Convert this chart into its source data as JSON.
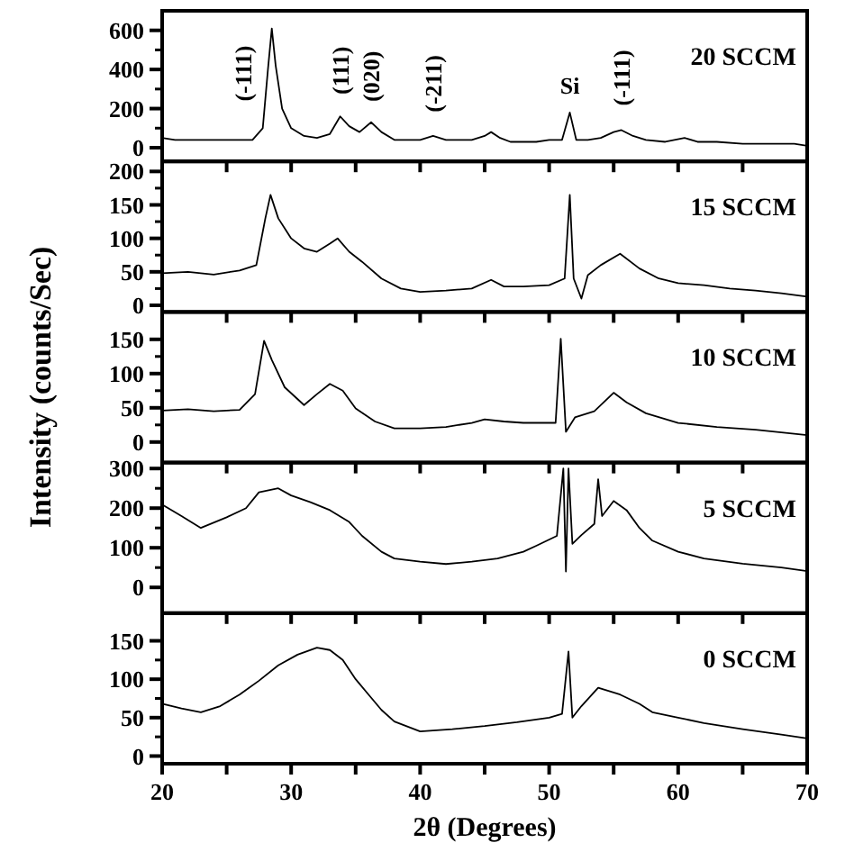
{
  "chart_data": [
    {
      "type": "line",
      "color": "#000000",
      "xlim": [
        20,
        70
      ],
      "ylim": [
        -70,
        700
      ],
      "yticks": [
        0,
        200,
        400,
        600
      ],
      "xticks": [
        20,
        {
          "value": 25,
          "label": null
        },
        30,
        {
          "value": 35,
          "label": null
        },
        40,
        {
          "value": 45,
          "label": null
        },
        50,
        {
          "value": 55,
          "label": null
        },
        60,
        {
          "value": 65,
          "label": null
        },
        70
      ],
      "tick_labels": "y",
      "annotations": [
        "20 SCCM",
        {
          "text": "(-111)",
          "x": 28.5,
          "y": 610
        },
        {
          "text": "(111)",
          "x": 33.8,
          "y": 160
        },
        {
          "text": "(020)",
          "x": 36.2,
          "y": 130
        },
        {
          "text": "(-211)",
          "x": 41,
          "y": 60
        },
        {
          "text": "Si",
          "x": 51.6,
          "y": 180
        },
        {
          "text": "(-111)",
          "x": 55.6,
          "y": 90
        }
      ],
      "x": [
        20,
        21,
        22,
        23,
        24,
        25,
        26,
        27,
        27.8,
        28.2,
        28.5,
        28.8,
        29.3,
        30,
        31,
        32,
        33,
        33.8,
        34.5,
        35.3,
        36.2,
        37,
        38,
        39,
        40,
        41,
        42,
        43,
        44,
        45,
        45.5,
        46.2,
        47,
        48,
        49,
        50,
        51,
        51.6,
        52.1,
        53,
        54,
        55,
        55.6,
        56.5,
        57.5,
        59,
        60.5,
        61.5,
        63,
        65,
        67,
        69,
        70
      ],
      "values": [
        50,
        40,
        40,
        40,
        40,
        40,
        40,
        40,
        100,
        400,
        610,
        420,
        200,
        100,
        60,
        50,
        70,
        160,
        110,
        80,
        130,
        80,
        40,
        40,
        40,
        60,
        40,
        40,
        40,
        60,
        80,
        50,
        30,
        30,
        30,
        40,
        40,
        180,
        40,
        40,
        50,
        80,
        90,
        60,
        40,
        30,
        50,
        30,
        30,
        20,
        20,
        20,
        10
      ]
    },
    {
      "type": "line",
      "color": "#000000",
      "xlim": [
        20,
        70
      ],
      "ylim": [
        -10,
        215
      ],
      "yticks": [
        0,
        50,
        100,
        150,
        200
      ],
      "xticks": [
        20,
        {
          "value": 25,
          "label": null
        },
        30,
        {
          "value": 35,
          "label": null
        },
        40,
        {
          "value": 45,
          "label": null
        },
        50,
        {
          "value": 55,
          "label": null
        },
        60,
        {
          "value": 65,
          "label": null
        },
        70
      ],
      "tick_labels": "y",
      "annotations": [
        "15 SCCM"
      ],
      "x": [
        20,
        22,
        24,
        26,
        27.3,
        28,
        28.4,
        29,
        30,
        31,
        32,
        33,
        33.6,
        34.5,
        35.5,
        37,
        38.5,
        40,
        42,
        44,
        45.5,
        46.5,
        48,
        50,
        51.2,
        51.6,
        51.9,
        52.5,
        53,
        54,
        55.5,
        57,
        58.5,
        60,
        62,
        64,
        66,
        68,
        70
      ],
      "values": [
        48,
        50,
        46,
        52,
        60,
        130,
        165,
        130,
        100,
        85,
        80,
        92,
        100,
        80,
        65,
        40,
        25,
        20,
        22,
        25,
        38,
        28,
        28,
        30,
        40,
        165,
        40,
        10,
        45,
        60,
        77,
        55,
        40,
        33,
        30,
        25,
        22,
        18,
        13
      ]
    },
    {
      "type": "line",
      "color": "#000000",
      "xlim": [
        20,
        70
      ],
      "ylim": [
        -30,
        190
      ],
      "yticks": [
        0,
        50,
        100,
        150
      ],
      "xticks": [
        20,
        {
          "value": 25,
          "label": null
        },
        30,
        {
          "value": 35,
          "label": null
        },
        40,
        {
          "value": 45,
          "label": null
        },
        50,
        {
          "value": 55,
          "label": null
        },
        60,
        {
          "value": 65,
          "label": null
        },
        70
      ],
      "tick_labels": "y",
      "ylabel": "Intensity (counts/Sec)",
      "annotations": [
        "10 SCCM"
      ],
      "x": [
        20,
        22,
        24,
        26,
        27.2,
        27.9,
        28.5,
        29.5,
        31,
        32,
        33,
        34,
        35,
        36.5,
        38,
        40,
        42,
        44,
        45,
        46.5,
        48,
        50.5,
        50.9,
        51.3,
        52,
        53.5,
        55,
        56,
        57.5,
        60,
        63,
        66,
        70
      ],
      "values": [
        46,
        48,
        45,
        47,
        70,
        148,
        120,
        80,
        54,
        70,
        85,
        75,
        49,
        30,
        20,
        20,
        22,
        28,
        33,
        30,
        28,
        28,
        151,
        15,
        36,
        45,
        72,
        58,
        42,
        28,
        22,
        18,
        10
      ]
    },
    {
      "type": "line",
      "color": "#000000",
      "xlim": [
        20,
        70
      ],
      "ylim": [
        -65,
        315
      ],
      "yticks": [
        0,
        100,
        200,
        300
      ],
      "xticks": [
        20,
        {
          "value": 25,
          "label": null
        },
        30,
        {
          "value": 35,
          "label": null
        },
        40,
        {
          "value": 45,
          "label": null
        },
        50,
        {
          "value": 55,
          "label": null
        },
        60,
        {
          "value": 65,
          "label": null
        },
        70
      ],
      "tick_labels": "y",
      "annotations": [
        "5 SCCM"
      ],
      "x": [
        20,
        21.5,
        23,
        25,
        26.5,
        27.5,
        29,
        30,
        31.5,
        33,
        34.5,
        35.5,
        37,
        38,
        40,
        42,
        44,
        46,
        48,
        49,
        50.6,
        51.1,
        51.3,
        51.5,
        51.8,
        52.5,
        53.5,
        53.8,
        54.1,
        55,
        56,
        57,
        58,
        60,
        62,
        65,
        68,
        70
      ],
      "values": [
        209,
        180,
        150,
        177,
        200,
        240,
        250,
        232,
        215,
        195,
        165,
        130,
        90,
        73,
        65,
        59,
        65,
        73,
        90,
        105,
        130,
        300,
        40,
        300,
        110,
        132,
        160,
        273,
        180,
        218,
        195,
        150,
        118,
        90,
        73,
        60,
        50,
        41
      ]
    },
    {
      "type": "line",
      "color": "#000000",
      "xlim": [
        20,
        70
      ],
      "ylim": [
        -10,
        186
      ],
      "yticks": [
        0,
        50,
        100,
        150
      ],
      "xticks": [
        20,
        {
          "value": 25,
          "label": null
        },
        30,
        {
          "value": 35,
          "label": null
        },
        40,
        {
          "value": 45,
          "label": null
        },
        50,
        {
          "value": 55,
          "label": null
        },
        60,
        {
          "value": 65,
          "label": null
        },
        70
      ],
      "xlabel": "2θ (Degrees)",
      "annotations": [
        "0 SCCM"
      ],
      "x": [
        20,
        21.5,
        23,
        24.5,
        26,
        27.5,
        29,
        30.5,
        32,
        33,
        34,
        35,
        36,
        37,
        38,
        40,
        42.5,
        45,
        47.5,
        50,
        51,
        51.5,
        51.8,
        52.5,
        53.8,
        55.5,
        57,
        58,
        60,
        62,
        65,
        68,
        70
      ],
      "values": [
        68,
        62,
        57,
        65,
        80,
        98,
        118,
        132,
        141,
        138,
        125,
        100,
        80,
        60,
        45,
        32,
        35,
        39,
        44,
        50,
        55,
        136,
        50,
        65,
        89,
        80,
        68,
        57,
        50,
        43,
        35,
        28,
        23
      ]
    }
  ]
}
